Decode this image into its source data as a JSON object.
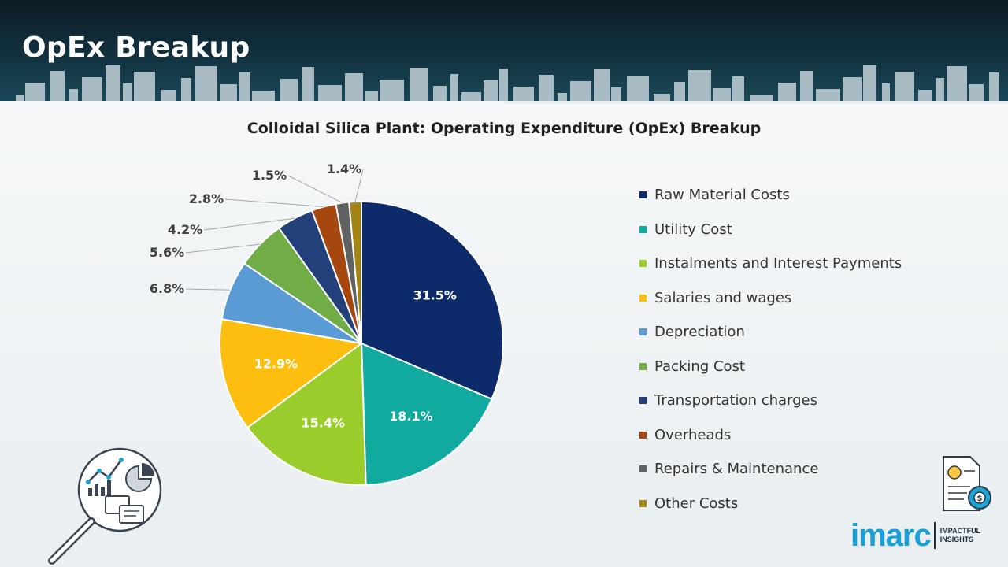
{
  "page": {
    "title": "OpEx Breakup"
  },
  "brand": {
    "name": "imarc",
    "tagline": "IMPACTFUL INSIGHTS",
    "accent": "#1a9fd6"
  },
  "icons": {
    "left": "analytics-magnifier-icon",
    "right": "opex-cost-document-icon"
  },
  "chart_data": {
    "type": "pie",
    "title": "Colloidal Silica Plant: Operating Expenditure (OpEx) Breakup",
    "legend_position": "right",
    "start_angle_deg": 0,
    "direction": "clockwise",
    "slices": [
      {
        "label": "Raw Material Costs",
        "value": 31.5,
        "value_label": "31.5%",
        "color": "#0d2a6b",
        "label_placement": "inside"
      },
      {
        "label": "Utility Cost",
        "value": 18.1,
        "value_label": "18.1%",
        "color": "#10aaa0",
        "label_placement": "inside"
      },
      {
        "label": "Instalments and Interest Payments",
        "value": 15.4,
        "value_label": "15.4%",
        "color": "#9acd2b",
        "label_placement": "inside"
      },
      {
        "label": "Salaries and wages",
        "value": 12.9,
        "value_label": "12.9%",
        "color": "#fdbe0f",
        "label_placement": "inside"
      },
      {
        "label": "Depreciation",
        "value": 6.8,
        "value_label": "6.8%",
        "color": "#5b9bd5",
        "label_placement": "outside"
      },
      {
        "label": "Packing Cost",
        "value": 5.6,
        "value_label": "5.6%",
        "color": "#70ad47",
        "label_placement": "outside"
      },
      {
        "label": "Transportation charges",
        "value": 4.2,
        "value_label": "4.2%",
        "color": "#24407a",
        "label_placement": "outside"
      },
      {
        "label": "Overheads",
        "value": 2.8,
        "value_label": "2.8%",
        "color": "#a6470f",
        "label_placement": "outside"
      },
      {
        "label": "Repairs & Maintenance",
        "value": 1.5,
        "value_label": "1.5%",
        "color": "#616161",
        "label_placement": "outside"
      },
      {
        "label": "Other Costs",
        "value": 1.4,
        "value_label": "1.4%",
        "color": "#a38414",
        "label_placement": "outside"
      }
    ]
  }
}
